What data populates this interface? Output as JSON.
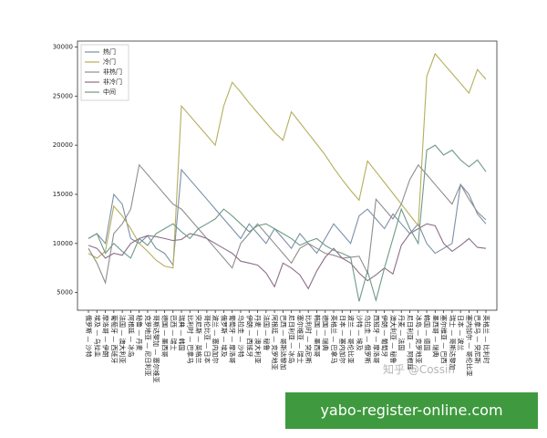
{
  "chart_data": {
    "type": "line",
    "categories": [
      "俄罗斯 — 沙特",
      "埃及 — 乌拉圭",
      "摩洛哥 — 伊朗",
      "葡萄牙 — 西班牙",
      "法国 — 澳大利亚",
      "阿根廷 — 冰岛",
      "秘鲁 — 丹麦",
      "克罗地亚 — 尼日利亚",
      "哥斯达黎加 — 塞尔维亚",
      "德国 — 墨西哥",
      "巴西 — 瑞士",
      "瑞典 — 韩国",
      "比利时 — 巴拿马",
      "突尼斯 — 英格兰",
      "哥伦比亚 — 日本",
      "波兰 — 塞内加尔",
      "俄罗斯 — 埃及",
      "葡萄牙 — 摩洛哥",
      "乌拉圭 — 沙特",
      "伊朗 — 西班牙",
      "丹麦 — 澳大利亚",
      "法国 — 秘鲁",
      "阿根廷 — 克罗地亚",
      "巴西 — 哥斯达黎加",
      "尼日利亚 — 冰岛",
      "塞尔维亚 — 瑞士",
      "比利时 — 突尼斯",
      "韩国 — 墨西哥",
      "德国 — 瑞典",
      "英格兰 — 巴拿马",
      "日本 — 塞内加尔",
      "波兰 — 哥伦比亚",
      "沙特 — 埃及",
      "乌拉圭 — 俄罗斯",
      "西班牙 — 摩洛哥",
      "伊朗 — 葡萄牙",
      "澳大利亚 — 秘鲁",
      "丹麦 — 法国",
      "尼日利亚 — 阿根廷",
      "冰岛 — 克罗地亚",
      "韩国 — 德国",
      "墨西哥 — 瑞典",
      "塞尔维亚 — 巴西",
      "瑞士 — 哥斯达黎加",
      "日本 — 波兰",
      "塞内加尔 — 哥伦比亚",
      "巴拿马 — 突尼斯",
      "英格兰 — 比利时"
    ],
    "series": [
      {
        "name": "热门",
        "color": "#7b8fa8",
        "values": [
          10500,
          11000,
          10000,
          15000,
          14000,
          10500,
          10000,
          10800,
          9500,
          9000,
          7800,
          17500,
          16500,
          15500,
          14500,
          13500,
          12500,
          11500,
          10500,
          12000,
          11000,
          10000,
          11500,
          10500,
          9500,
          11000,
          10000,
          9000,
          10500,
          12000,
          11000,
          10000,
          12800,
          13500,
          12500,
          11500,
          13000,
          12000,
          11000,
          12000,
          10000,
          9000,
          9500,
          10000,
          16000,
          15000,
          13000,
          12000
        ]
      },
      {
        "name": "冷门",
        "color": "#b5ae5e",
        "values": [
          9000,
          8500,
          9200,
          13800,
          12800,
          11500,
          10000,
          9200,
          8300,
          7700,
          7500,
          24000,
          23000,
          22000,
          21000,
          20000,
          24000,
          26400,
          25400,
          24300,
          23300,
          22300,
          21300,
          20500,
          23400,
          22300,
          21200,
          20100,
          19000,
          17700,
          16500,
          15400,
          14400,
          18400,
          17300,
          16200,
          15100,
          14000,
          12900,
          11800,
          27000,
          29300,
          28300,
          27300,
          26300,
          25300,
          27700,
          26700
        ]
      },
      {
        "name": "非热门",
        "color": "#8e8e8e",
        "values": [
          9500,
          8000,
          6000,
          11000,
          12000,
          13500,
          18000,
          17000,
          16000,
          15000,
          14000,
          13500,
          12500,
          11500,
          10500,
          9500,
          8500,
          7500,
          10000,
          11000,
          12000,
          11000,
          10000,
          9000,
          8000,
          9500,
          10000,
          9500,
          9000,
          8800,
          8500,
          8600,
          8700,
          7000,
          14500,
          13500,
          12500,
          14000,
          16500,
          18000,
          17000,
          16000,
          15000,
          14000,
          16000,
          14500,
          13200,
          12400
        ]
      },
      {
        "name": "非冷门",
        "color": "#8e6e8a",
        "values": [
          9800,
          9500,
          8500,
          9000,
          8800,
          10000,
          10500,
          10800,
          10700,
          10500,
          10300,
          10400,
          11000,
          10800,
          10500,
          10000,
          9500,
          9000,
          8200,
          8000,
          7800,
          7000,
          5600,
          8000,
          7500,
          6800,
          5400,
          7200,
          8600,
          9500,
          8500,
          8000,
          7000,
          6200,
          6800,
          7500,
          6900,
          9800,
          11000,
          11500,
          12000,
          11800,
          10000,
          9200,
          9800,
          10500,
          9600,
          9500
        ]
      },
      {
        "name": "中间",
        "color": "#6f9a86",
        "values": [
          10500,
          11000,
          9000,
          10000,
          9200,
          8500,
          10500,
          9800,
          11000,
          11500,
          12000,
          11200,
          10500,
          11500,
          12000,
          12500,
          13500,
          12800,
          12000,
          11200,
          11800,
          12000,
          11500,
          11000,
          10500,
          9800,
          10200,
          10500,
          9800,
          9300,
          9000,
          8600,
          4100,
          7200,
          4200,
          7500,
          10500,
          13500,
          11500,
          10000,
          19500,
          20000,
          19000,
          19500,
          18500,
          17800,
          18500,
          17300
        ]
      }
    ],
    "ylim": [
      3200,
      30600
    ],
    "yticks": [
      5000,
      10000,
      15000,
      20000,
      25000,
      30000
    ],
    "grid": false,
    "legend": "upper left"
  },
  "watermark": "知乎 @Cossin",
  "banner": "yabo-register-online.com"
}
